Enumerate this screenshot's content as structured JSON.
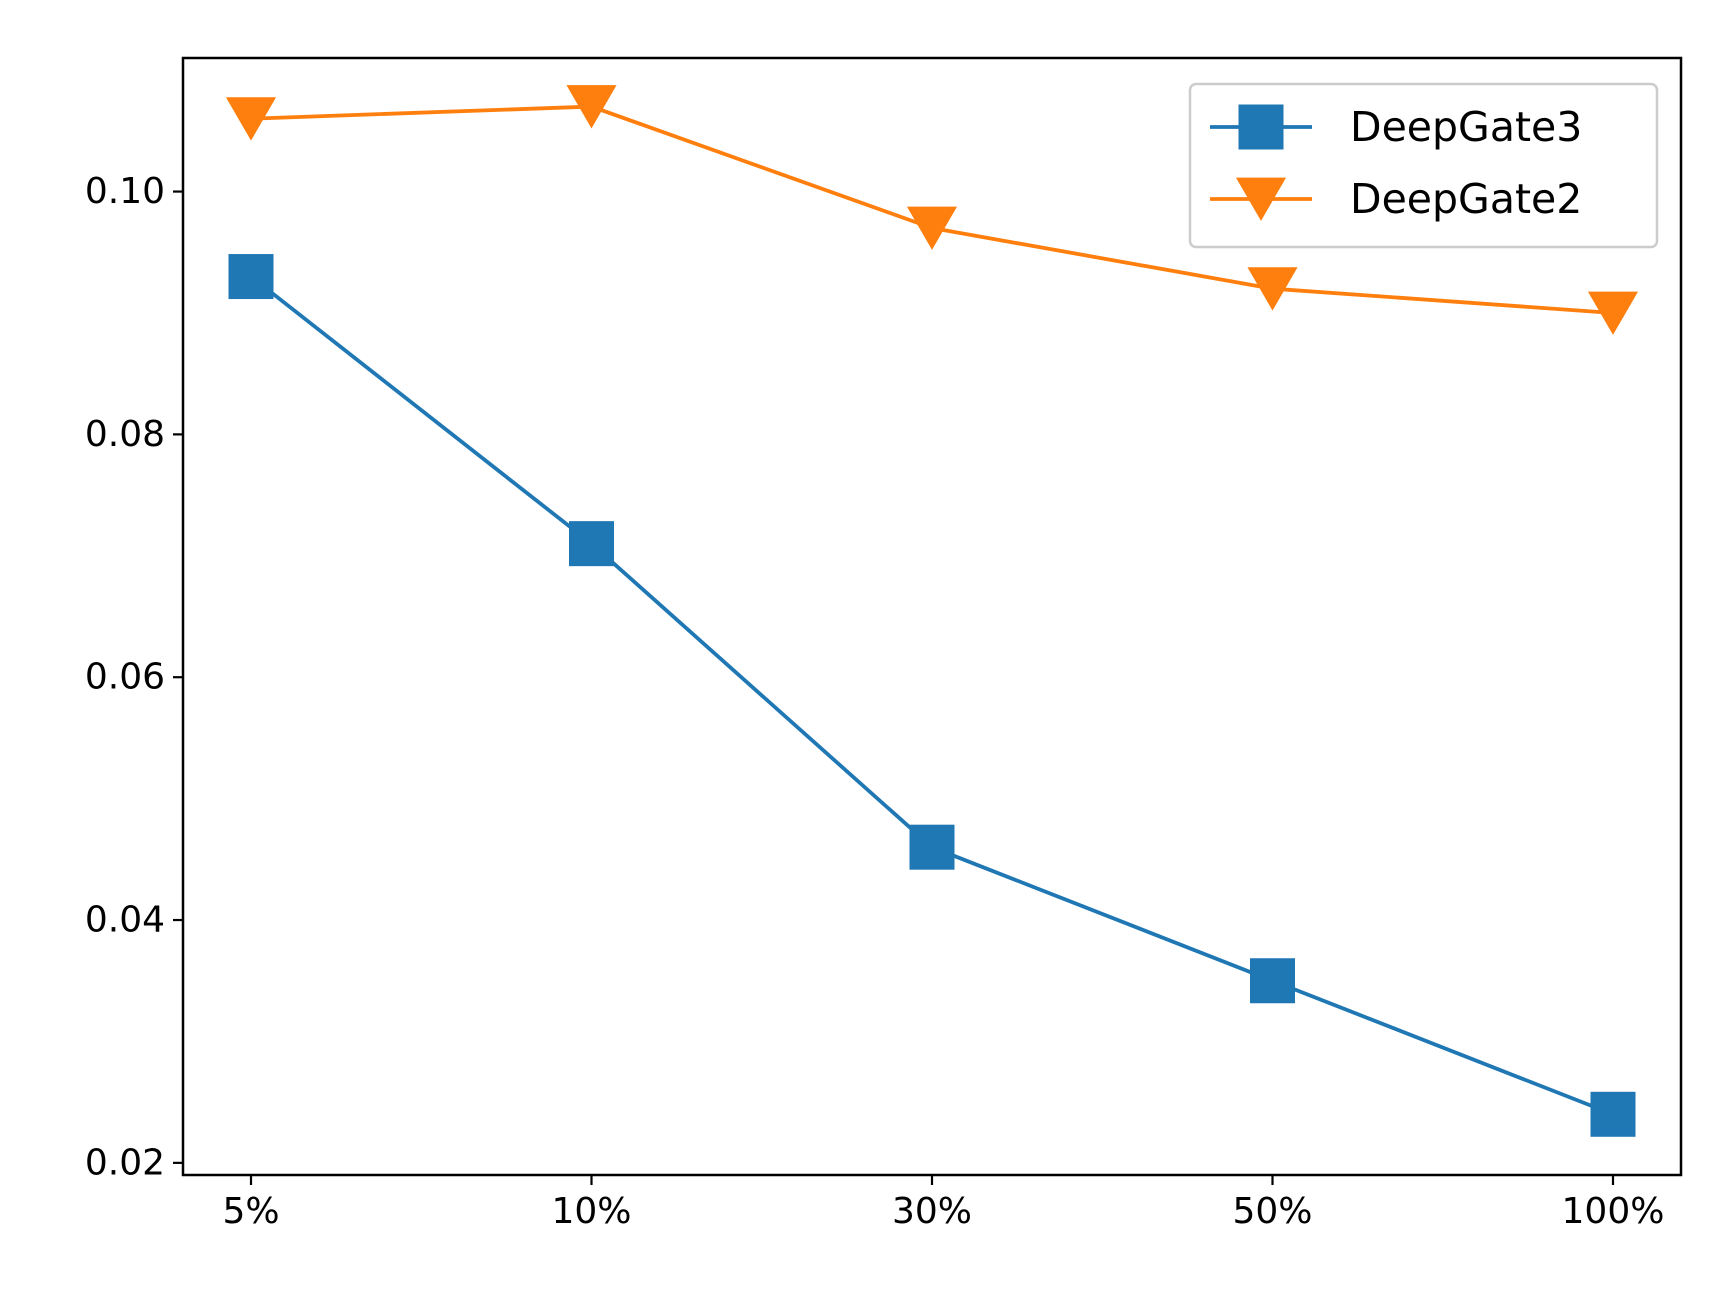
{
  "chart_data": {
    "type": "line",
    "title": "",
    "xlabel": "",
    "ylabel": "",
    "categories": [
      "5%",
      "10%",
      "30%",
      "50%",
      "100%"
    ],
    "ylim": [
      0.019,
      0.111
    ],
    "yticks": [
      0.02,
      0.04,
      0.06,
      0.08,
      0.1
    ],
    "ytick_labels": [
      "0.02",
      "0.04",
      "0.06",
      "0.08",
      "0.10"
    ],
    "grid": false,
    "legend_position": "top-right",
    "series": [
      {
        "name": "DeepGate3",
        "values": [
          0.093,
          0.071,
          0.046,
          0.035,
          0.024
        ],
        "color": "#1f77b4",
        "marker": "square"
      },
      {
        "name": "DeepGate2",
        "values": [
          0.106,
          0.107,
          0.097,
          0.092,
          0.09
        ],
        "color": "#ff7f0e",
        "marker": "triangle-down"
      }
    ]
  }
}
